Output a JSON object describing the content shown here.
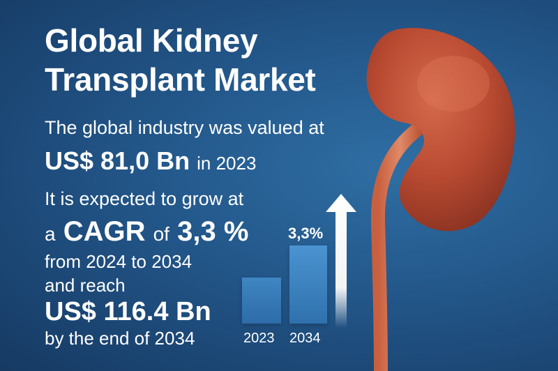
{
  "title": {
    "line1": "Global Kidney",
    "line2": "Transplant Market"
  },
  "summary": {
    "valued_text": "The global industry was valued at",
    "current_value": "US$ 81,0 Bn",
    "current_year_text": "in 2023",
    "expect_text": "It is expected to grow at",
    "cagr_prefix": "a",
    "cagr_label": "CAGR",
    "cagr_of": "of",
    "cagr_value": "3,3 %",
    "period_text": "from 2024 to 2034",
    "reach_text": "and reach",
    "future_value": "US$ 116.4 Bn",
    "end_text": "by the end of 2034"
  },
  "chart_data": {
    "type": "bar",
    "categories": [
      "2023",
      "2034"
    ],
    "values": [
      81.0,
      116.4
    ],
    "annotations": [
      {
        "category": "2034",
        "text": "3,3%"
      }
    ]
  },
  "colors": {
    "background": "#24598c",
    "kidney": "#b84a31",
    "bar": "#3a80bf",
    "text": "#ffffff"
  },
  "icons": [
    "kidney-illustration",
    "up-arrow-icon"
  ]
}
